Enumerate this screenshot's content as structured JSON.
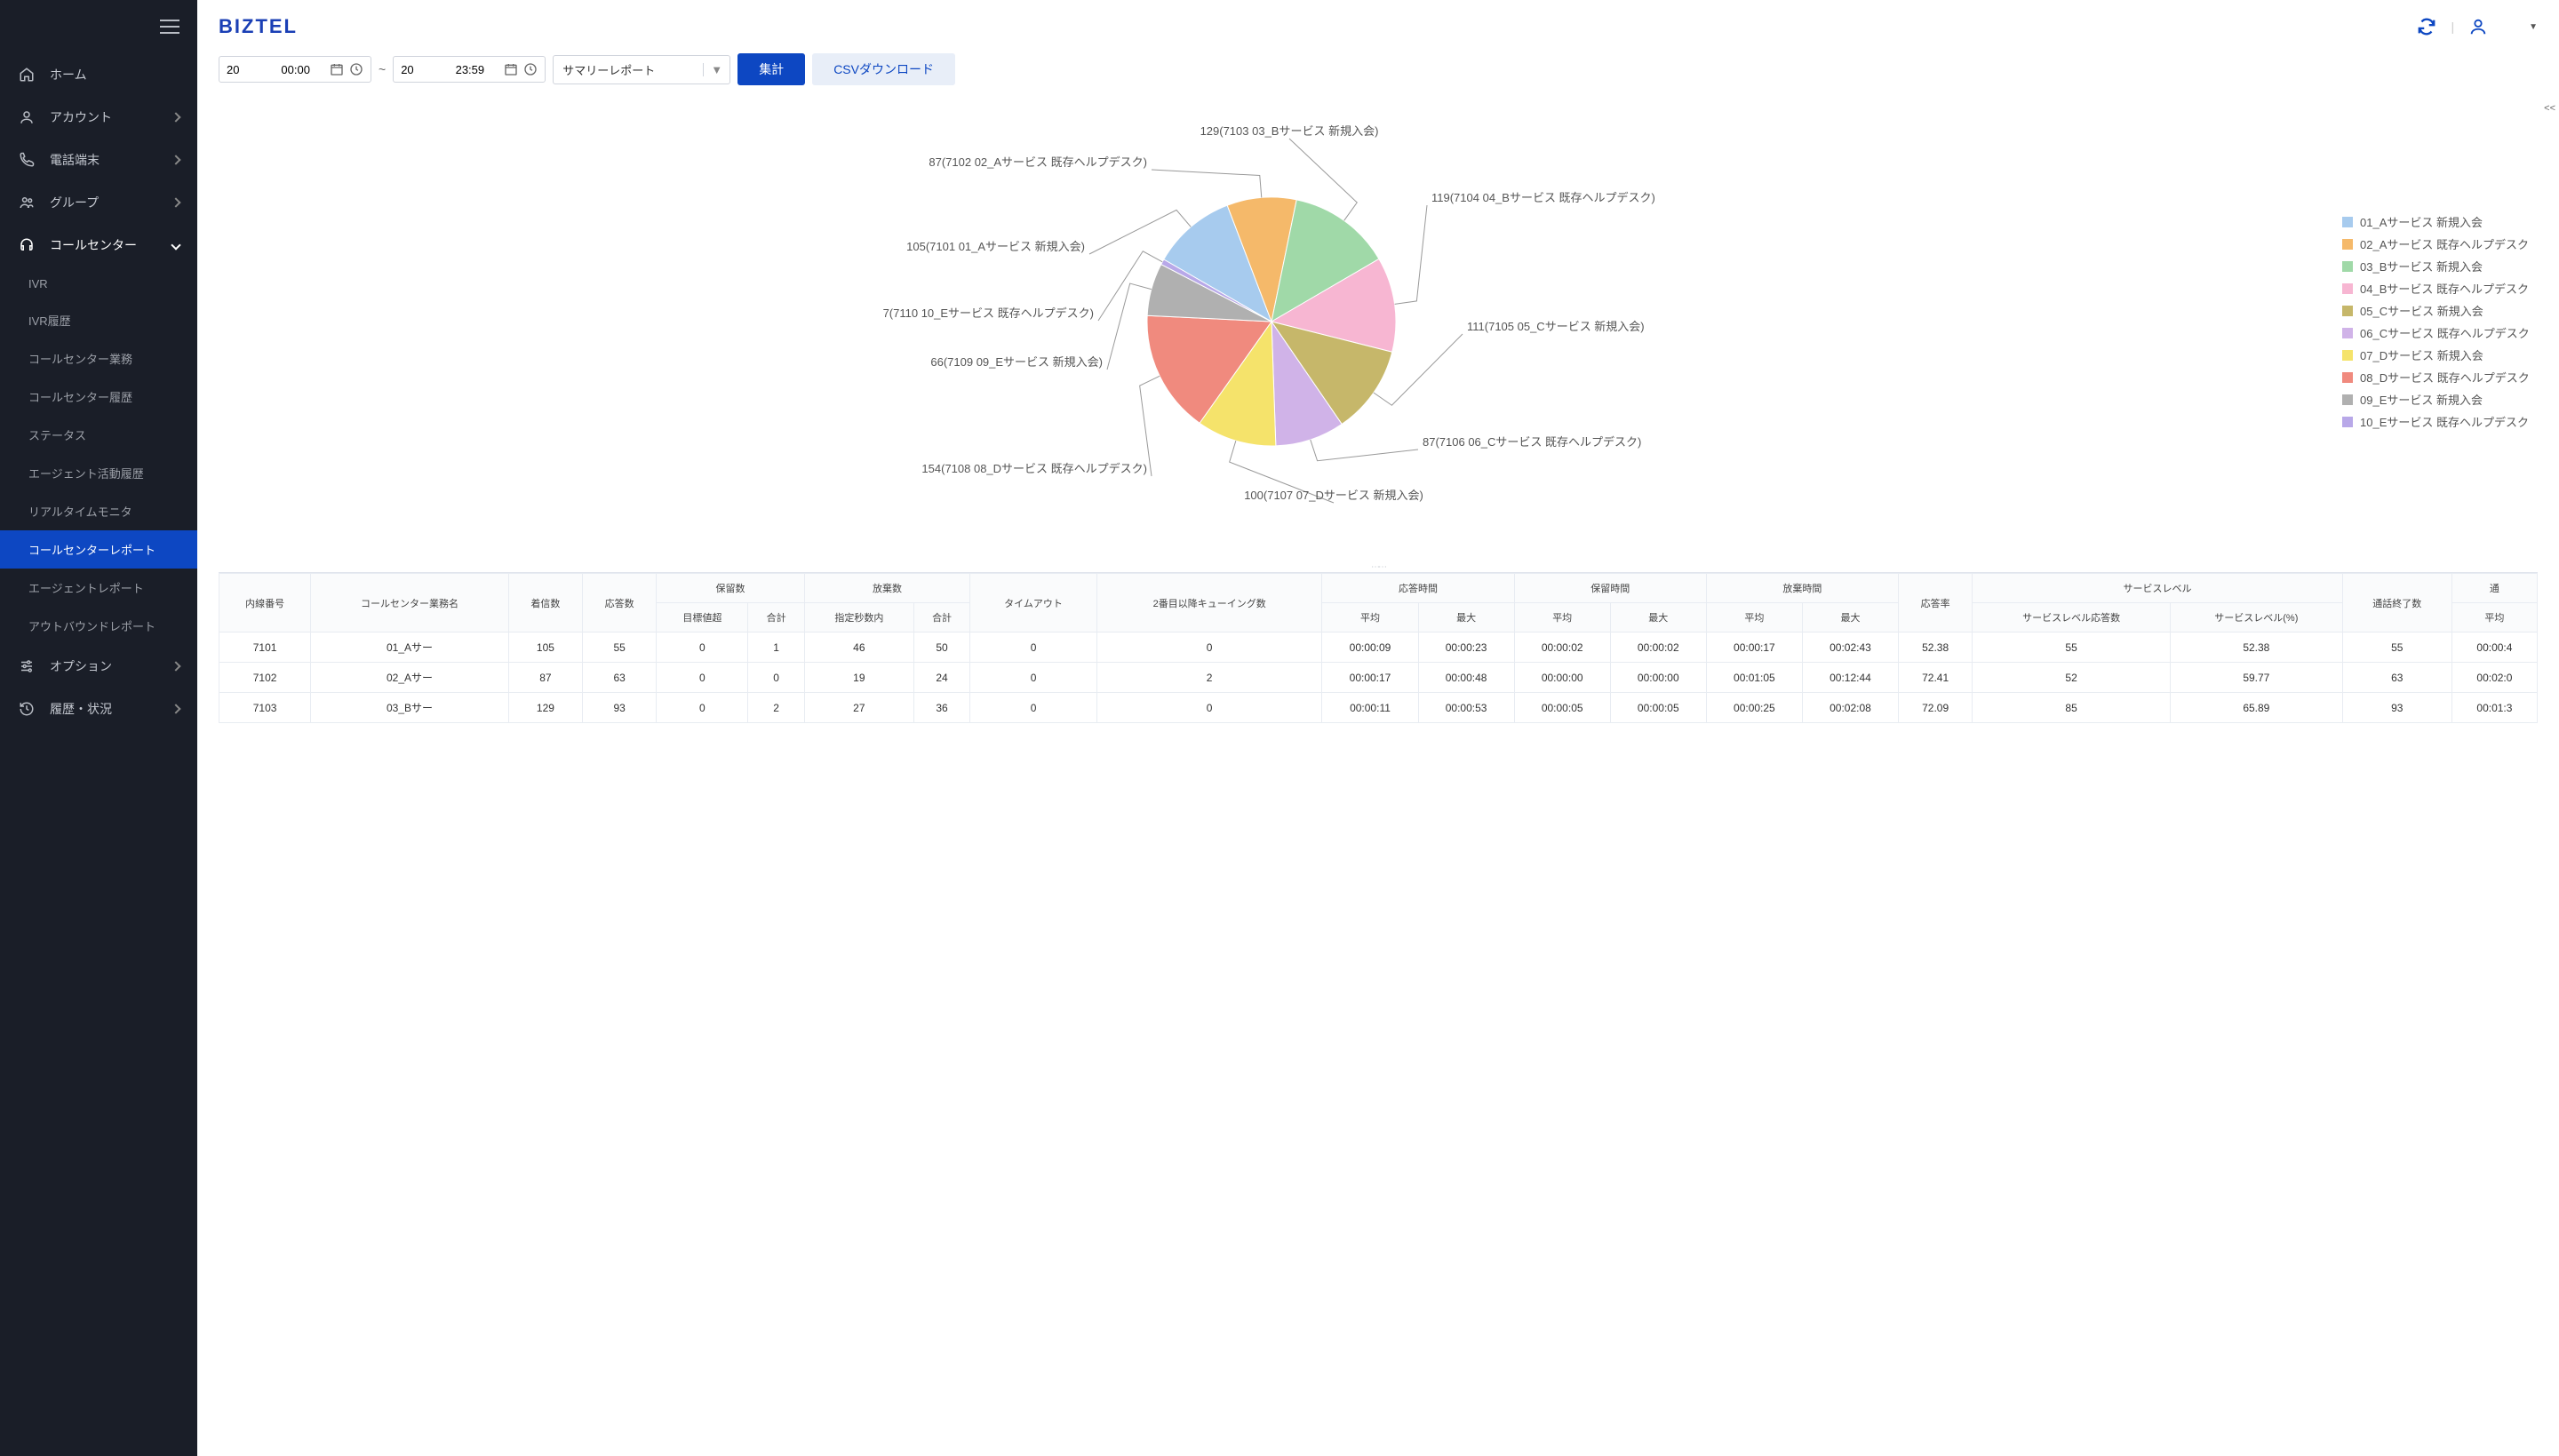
{
  "logo": "BIZTEL",
  "nav": {
    "home": "ホーム",
    "account": "アカウント",
    "phone": "電話端末",
    "group": "グループ",
    "callcenter": "コールセンター",
    "option": "オプション",
    "history": "履歴・状況"
  },
  "subnav": {
    "ivr": "IVR",
    "ivr_history": "IVR履歴",
    "cc_work": "コールセンター業務",
    "cc_history": "コールセンター履歴",
    "status": "ステータス",
    "agent_activity": "エージェント活動履歴",
    "realtime": "リアルタイムモニタ",
    "cc_report": "コールセンターレポート",
    "agent_report": "エージェントレポート",
    "outbound": "アウトバウンドレポート"
  },
  "controls": {
    "date_from": "20             00:00",
    "date_to": "20             23:59",
    "report_type": "サマリーレポート",
    "aggregate_btn": "集計",
    "csv_btn": "CSVダウンロード"
  },
  "collapse": "<<",
  "user_name": " ",
  "pie": {
    "slices": [
      {
        "value": 105,
        "code": "7101",
        "label": "01_Aサービス 新規入会",
        "color": "#a7cbee"
      },
      {
        "value": 87,
        "code": "7102",
        "label": "02_Aサービス 既存ヘルプデスク",
        "color": "#f5b96a"
      },
      {
        "value": 129,
        "code": "7103",
        "label": "03_Bサービス 新規入会",
        "color": "#a0d9a8"
      },
      {
        "value": 119,
        "code": "7104",
        "label": "04_Bサービス 既存ヘルプデスク",
        "color": "#f7b6d2"
      },
      {
        "value": 111,
        "code": "7105",
        "label": "05_Cサービス 新規入会",
        "color": "#c6b76a"
      },
      {
        "value": 87,
        "code": "7106",
        "label": "06_Cサービス 既存ヘルプデスク",
        "color": "#d0b3e8"
      },
      {
        "value": 100,
        "code": "7107",
        "label": "07_Dサービス 新規入会",
        "color": "#f5e36b"
      },
      {
        "value": 154,
        "code": "7108",
        "label": "08_Dサービス 既存ヘルプデスク",
        "color": "#f08a7e"
      },
      {
        "value": 66,
        "code": "7109",
        "label": "09_Eサービス 新規入会",
        "color": "#b0b0b0"
      },
      {
        "value": 7,
        "code": "7110",
        "label": "10_Eサービス 既存ヘルプデスク",
        "color": "#b8a8e8"
      }
    ],
    "legend_labels": [
      "01_Aサービス 新規入会",
      "02_Aサービス 既存ヘルプデスク",
      "03_Bサービス 新規入会",
      "04_Bサービス 既存ヘルプデスク",
      "05_Cサービス 新規入会",
      "06_Cサービス 既存ヘルプデスク",
      "07_Dサービス 新規入会",
      "08_Dサービス 既存ヘルプデスク",
      "09_Eサービス 新規入会",
      "10_Eサービス 既存ヘルプデスク"
    ]
  },
  "table": {
    "head_group": {
      "ext": "内線番号",
      "cc_name": "コールセンター業務名",
      "incoming": "着信数",
      "answered": "応答数",
      "hold_count": "保留数",
      "abandon_count": "放棄数",
      "timeout": "タイムアウト",
      "queue2": "2番目以降キューイング数",
      "answer_time": "応答時間",
      "hold_time": "保留時間",
      "abandon_time": "放棄時間",
      "answer_rate": "応答率",
      "service_level": "サービスレベル",
      "call_end": "通話終了数",
      "talk": "通",
      "avg2": "平均"
    },
    "head_sub": {
      "over_target": "目標値超",
      "total": "合計",
      "within_sec": "指定秒数内",
      "total2": "合計",
      "avg": "平均",
      "max": "最大",
      "sl_ans": "サービスレベル応答数",
      "sl_pct": "サービスレベル(%)"
    },
    "rows": [
      {
        "ext": "7101",
        "name": "01_Aサー",
        "in": "105",
        "ans": "55",
        "ht_over": "0",
        "ht_tot": "1",
        "ab_in": "46",
        "ab_tot": "50",
        "to": "0",
        "q2": "0",
        "at_avg": "00:00:09",
        "at_max": "00:00:23",
        "ht_avg": "00:00:02",
        "ht_max": "00:00:02",
        "abt_avg": "00:00:17",
        "abt_max": "00:02:43",
        "rate": "52.38",
        "sl_a": "55",
        "sl_p": "52.38",
        "end": "55",
        "tavg": "00:00:4"
      },
      {
        "ext": "7102",
        "name": "02_Aサー",
        "in": "87",
        "ans": "63",
        "ht_over": "0",
        "ht_tot": "0",
        "ab_in": "19",
        "ab_tot": "24",
        "to": "0",
        "q2": "2",
        "at_avg": "00:00:17",
        "at_max": "00:00:48",
        "ht_avg": "00:00:00",
        "ht_max": "00:00:00",
        "abt_avg": "00:01:05",
        "abt_max": "00:12:44",
        "rate": "72.41",
        "sl_a": "52",
        "sl_p": "59.77",
        "end": "63",
        "tavg": "00:02:0"
      },
      {
        "ext": "7103",
        "name": "03_Bサー",
        "in": "129",
        "ans": "93",
        "ht_over": "0",
        "ht_tot": "2",
        "ab_in": "27",
        "ab_tot": "36",
        "to": "0",
        "q2": "0",
        "at_avg": "00:00:11",
        "at_max": "00:00:53",
        "ht_avg": "00:00:05",
        "ht_max": "00:00:05",
        "abt_avg": "00:00:25",
        "abt_max": "00:02:08",
        "rate": "72.09",
        "sl_a": "85",
        "sl_p": "65.89",
        "end": "93",
        "tavg": "00:01:3"
      }
    ]
  }
}
